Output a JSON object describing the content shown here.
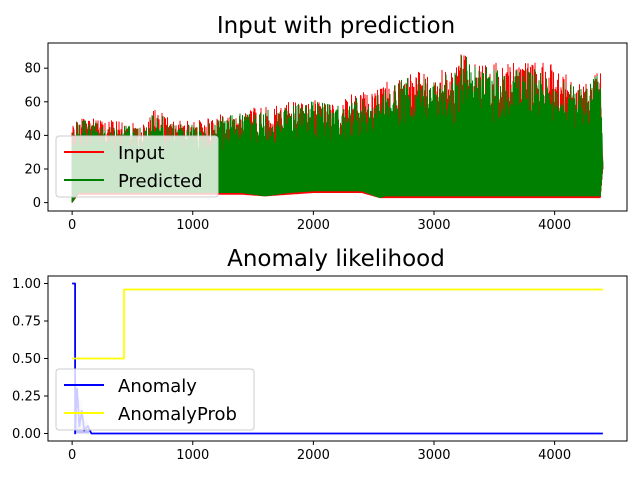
{
  "chart_data": [
    {
      "type": "line",
      "title": "Input with prediction",
      "xlabel": "",
      "ylabel": "",
      "xlim": [
        -200,
        4600
      ],
      "ylim": [
        -5,
        95
      ],
      "xticks": [
        0,
        1000,
        2000,
        3000,
        4000
      ],
      "yticks": [
        0,
        20,
        40,
        60,
        80
      ],
      "grid": false,
      "legend_position": "lower-left",
      "series": [
        {
          "name": "Input",
          "color": "#ff0000",
          "style": "dense-oscillating",
          "envelope": {
            "x": [
              0,
              50,
              200,
              400,
              600,
              700,
              800,
              1000,
              1200,
              1400,
              1600,
              1800,
              2000,
              2200,
              2400,
              2550,
              2600,
              2800,
              3000,
              3200,
              3230,
              3400,
              3600,
              3800,
              4000,
              4200,
              4300,
              4380,
              4400
            ],
            "low": [
              0,
              5,
              5,
              5,
              5,
              5,
              5,
              5,
              5,
              5,
              4,
              5,
              6,
              6,
              6,
              3,
              3,
              3,
              3,
              3,
              3,
              3,
              3,
              3,
              3,
              3,
              3,
              3,
              20
            ],
            "high": [
              45,
              52,
              50,
              48,
              47,
              59,
              50,
              48,
              52,
              56,
              57,
              60,
              62,
              60,
              68,
              67,
              72,
              79,
              77,
              85,
              91,
              85,
              83,
              84,
              82,
              70,
              75,
              83,
              22
            ]
          }
        },
        {
          "name": "Predicted",
          "color": "#008000",
          "style": "dense-oscillating",
          "envelope": {
            "x": [
              0,
              50,
              200,
              400,
              600,
              700,
              800,
              1000,
              1200,
              1400,
              1600,
              1800,
              2000,
              2200,
              2400,
              2550,
              2600,
              2800,
              3000,
              3200,
              3230,
              3400,
              3600,
              3800,
              4000,
              4200,
              4300,
              4380,
              4400
            ],
            "low": [
              0,
              6,
              6,
              6,
              6,
              6,
              6,
              6,
              6,
              6,
              4,
              6,
              7,
              7,
              7,
              3,
              4,
              4,
              4,
              4,
              4,
              4,
              4,
              4,
              4,
              4,
              4,
              4,
              22
            ],
            "high": [
              42,
              50,
              48,
              46,
              45,
              56,
              48,
              46,
              50,
              54,
              55,
              58,
              60,
              58,
              64,
              64,
              69,
              75,
              73,
              80,
              88,
              82,
              79,
              80,
              78,
              67,
              72,
              78,
              22
            ]
          }
        }
      ]
    },
    {
      "type": "line",
      "title": "Anomaly likelihood",
      "xlabel": "",
      "ylabel": "",
      "xlim": [
        -200,
        4600
      ],
      "ylim": [
        -0.05,
        1.05
      ],
      "xticks": [
        0,
        1000,
        2000,
        3000,
        4000
      ],
      "yticks": [
        "0.00",
        "0.25",
        "0.50",
        "0.75",
        "1.00"
      ],
      "yticks_values": [
        0,
        0.25,
        0.5,
        0.75,
        1.0
      ],
      "grid": false,
      "legend_position": "lower-left",
      "series": [
        {
          "name": "Anomaly",
          "color": "#0000ff",
          "x": [
            0,
            25,
            25,
            40,
            60,
            80,
            100,
            130,
            160,
            4400
          ],
          "values": [
            1.0,
            1.0,
            0.0,
            0.3,
            0.05,
            0.15,
            0.02,
            0.05,
            0.0,
            0.0
          ]
        },
        {
          "name": "AnomalyProb",
          "color": "#ffff00",
          "x": [
            0,
            430,
            430,
            4400
          ],
          "values": [
            0.5,
            0.5,
            0.96,
            0.96
          ]
        }
      ]
    }
  ]
}
